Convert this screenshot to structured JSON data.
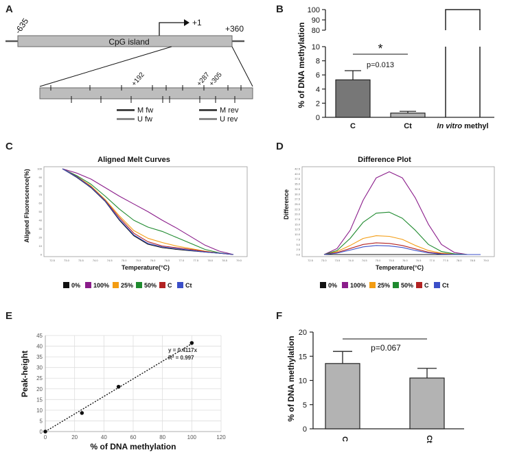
{
  "panels": {
    "A": "A",
    "B": "B",
    "C": "C",
    "D": "D",
    "E": "E",
    "F": "F"
  },
  "colors": {
    "c0": "#111111",
    "c100": "#8a1c8a",
    "c25": "#f39c12",
    "c50": "#1e8a2e",
    "cC": "#b22222",
    "cCt": "#3b4fc8",
    "barDark": "#777777",
    "barLight": "#b3b3b3",
    "island": "#bdbdbd"
  },
  "panelA": {
    "island_label": "CpG island",
    "tss_label": "+1",
    "start_label": "-635",
    "end_label": "+360",
    "pos192": "+192",
    "pos287": "+287",
    "pos305": "+305",
    "primers": {
      "m_fw": "M fw",
      "u_fw": "U fw",
      "m_rev": "M rev",
      "u_rev": "U rev"
    }
  },
  "chart_data": [
    {
      "id": "B",
      "type": "bar",
      "categories": [
        "C",
        "Ct",
        "In vitro methyl"
      ],
      "values": [
        5.3,
        0.6,
        100
      ],
      "errors": [
        1.3,
        0.25,
        0
      ],
      "ylabel": "% of DNA methylation",
      "broken_axis": {
        "lower": [
          0,
          10
        ],
        "upper": [
          80,
          100
        ]
      },
      "lower_ticks": [
        0,
        2,
        4,
        6,
        8,
        10
      ],
      "upper_ticks": [
        80,
        90,
        100
      ],
      "cat_label_C": "C",
      "cat_label_Ct": "Ct",
      "cat_label_ivm_italic": "In vitro",
      "cat_label_ivm_rest": " methyl",
      "significance": "*",
      "pvalue": "p=0.013"
    },
    {
      "id": "C",
      "type": "line",
      "title": "Aligned Melt Curves",
      "xlabel": "Temperature(°C)",
      "ylabel": "Aligned Fluorescence(%)",
      "ylim": [
        0,
        100
      ],
      "yticks": [
        0,
        10,
        20,
        30,
        40,
        50,
        60,
        70,
        80,
        90,
        100
      ],
      "xticks": [
        "72.5",
        "73.0",
        "73.5",
        "74.0",
        "74.5",
        "75.0",
        "75.5",
        "76.0",
        "76.5",
        "77.0",
        "77.5",
        "78.0",
        "78.5",
        "79.0"
      ],
      "series": [
        {
          "name": "0%",
          "values": [
            100,
            90,
            78,
            62,
            40,
            22,
            12,
            8,
            6,
            4.5,
            3,
            1.5,
            0
          ]
        },
        {
          "name": "100%",
          "values": [
            100,
            95,
            88,
            78,
            68,
            59,
            50,
            40,
            31,
            21,
            11,
            4,
            0
          ]
        },
        {
          "name": "25%",
          "values": [
            100,
            91,
            80,
            64,
            45,
            28,
            19,
            14,
            10,
            7,
            4,
            1.5,
            0
          ]
        },
        {
          "name": "50%",
          "values": [
            100,
            92,
            82,
            68,
            53,
            40,
            32,
            27,
            20,
            13,
            6,
            2,
            0
          ]
        },
        {
          "name": "C",
          "values": [
            100,
            91,
            79,
            63,
            43,
            25,
            15,
            10,
            8,
            6,
            3.5,
            1.5,
            0
          ]
        },
        {
          "name": "Ct",
          "values": [
            100,
            90.5,
            78.5,
            62.5,
            41,
            23,
            13,
            9,
            7,
            5,
            3,
            1.5,
            0
          ]
        }
      ],
      "x_index_range": [
        73.0,
        78.5
      ]
    },
    {
      "id": "D",
      "type": "line",
      "title": "Difference Plot",
      "xlabel": "Temperature(°C)",
      "ylabel": "Difference",
      "ylim": [
        0,
        42.5
      ],
      "yticks": [
        "0.0",
        "2.5",
        "5.0",
        "7.5",
        "10.0",
        "12.5",
        "15.0",
        "17.5",
        "20.0",
        "22.5",
        "25.0",
        "27.5",
        "30.0",
        "32.5",
        "35.0",
        "37.5",
        "40.0",
        "42.5"
      ],
      "xticks": [
        "72.5",
        "73.0",
        "73.5",
        "74.0",
        "74.5",
        "75.0",
        "75.5",
        "76.0",
        "76.5",
        "77.0",
        "77.5",
        "78.0",
        "78.5",
        "79.0"
      ],
      "series": [
        {
          "name": "0%",
          "values": [
            0,
            0,
            0,
            0,
            0,
            0,
            0,
            0,
            0,
            0,
            0,
            0,
            0
          ]
        },
        {
          "name": "100%",
          "values": [
            0,
            3,
            12,
            27,
            38,
            41,
            38,
            28,
            15,
            5,
            1,
            0,
            0
          ]
        },
        {
          "name": "25%",
          "values": [
            0,
            1.5,
            4.5,
            8,
            9.3,
            9,
            7.5,
            4.5,
            2,
            0.7,
            0.2,
            0,
            0
          ]
        },
        {
          "name": "50%",
          "values": [
            0,
            2,
            8,
            16,
            20.5,
            21,
            18,
            12,
            5,
            1.5,
            0.3,
            0,
            0
          ]
        },
        {
          "name": "C",
          "values": [
            0,
            1,
            3,
            5,
            5.8,
            5.5,
            4.5,
            2.8,
            1.2,
            0.4,
            0,
            0,
            0
          ]
        },
        {
          "name": "Ct",
          "values": [
            0,
            0.7,
            2.2,
            3.8,
            4.5,
            4.3,
            3.5,
            2,
            0.8,
            0.2,
            0,
            0,
            0
          ]
        }
      ],
      "x_index_range": [
        73.5,
        79.0
      ]
    },
    {
      "id": "E",
      "type": "scatter",
      "xlabel": "% of DNA methylation",
      "ylabel": "Peak-height",
      "xlim": [
        0,
        120
      ],
      "ylim": [
        0,
        45
      ],
      "xticks": [
        0,
        20,
        40,
        60,
        80,
        100,
        120
      ],
      "yticks": [
        0,
        5,
        10,
        15,
        20,
        25,
        30,
        35,
        40,
        45
      ],
      "points": [
        [
          0,
          0
        ],
        [
          25,
          8.7
        ],
        [
          50,
          21
        ],
        [
          100,
          41.5
        ]
      ],
      "fit_slope": 0.4117,
      "equation": "y = 0.4117x",
      "r2": "R² = 0.997"
    },
    {
      "id": "F",
      "type": "bar",
      "categories": [
        "C",
        "Ct"
      ],
      "values": [
        13.5,
        10.5
      ],
      "errors": [
        2.5,
        2.0
      ],
      "ylabel": "% of DNA methylation",
      "ylim": [
        0,
        20
      ],
      "yticks": [
        0,
        5,
        10,
        15,
        20
      ],
      "pvalue": "p=0.067"
    }
  ],
  "legend": {
    "items": [
      "0%",
      "100%",
      "25%",
      "50%",
      "C",
      "Ct"
    ]
  }
}
